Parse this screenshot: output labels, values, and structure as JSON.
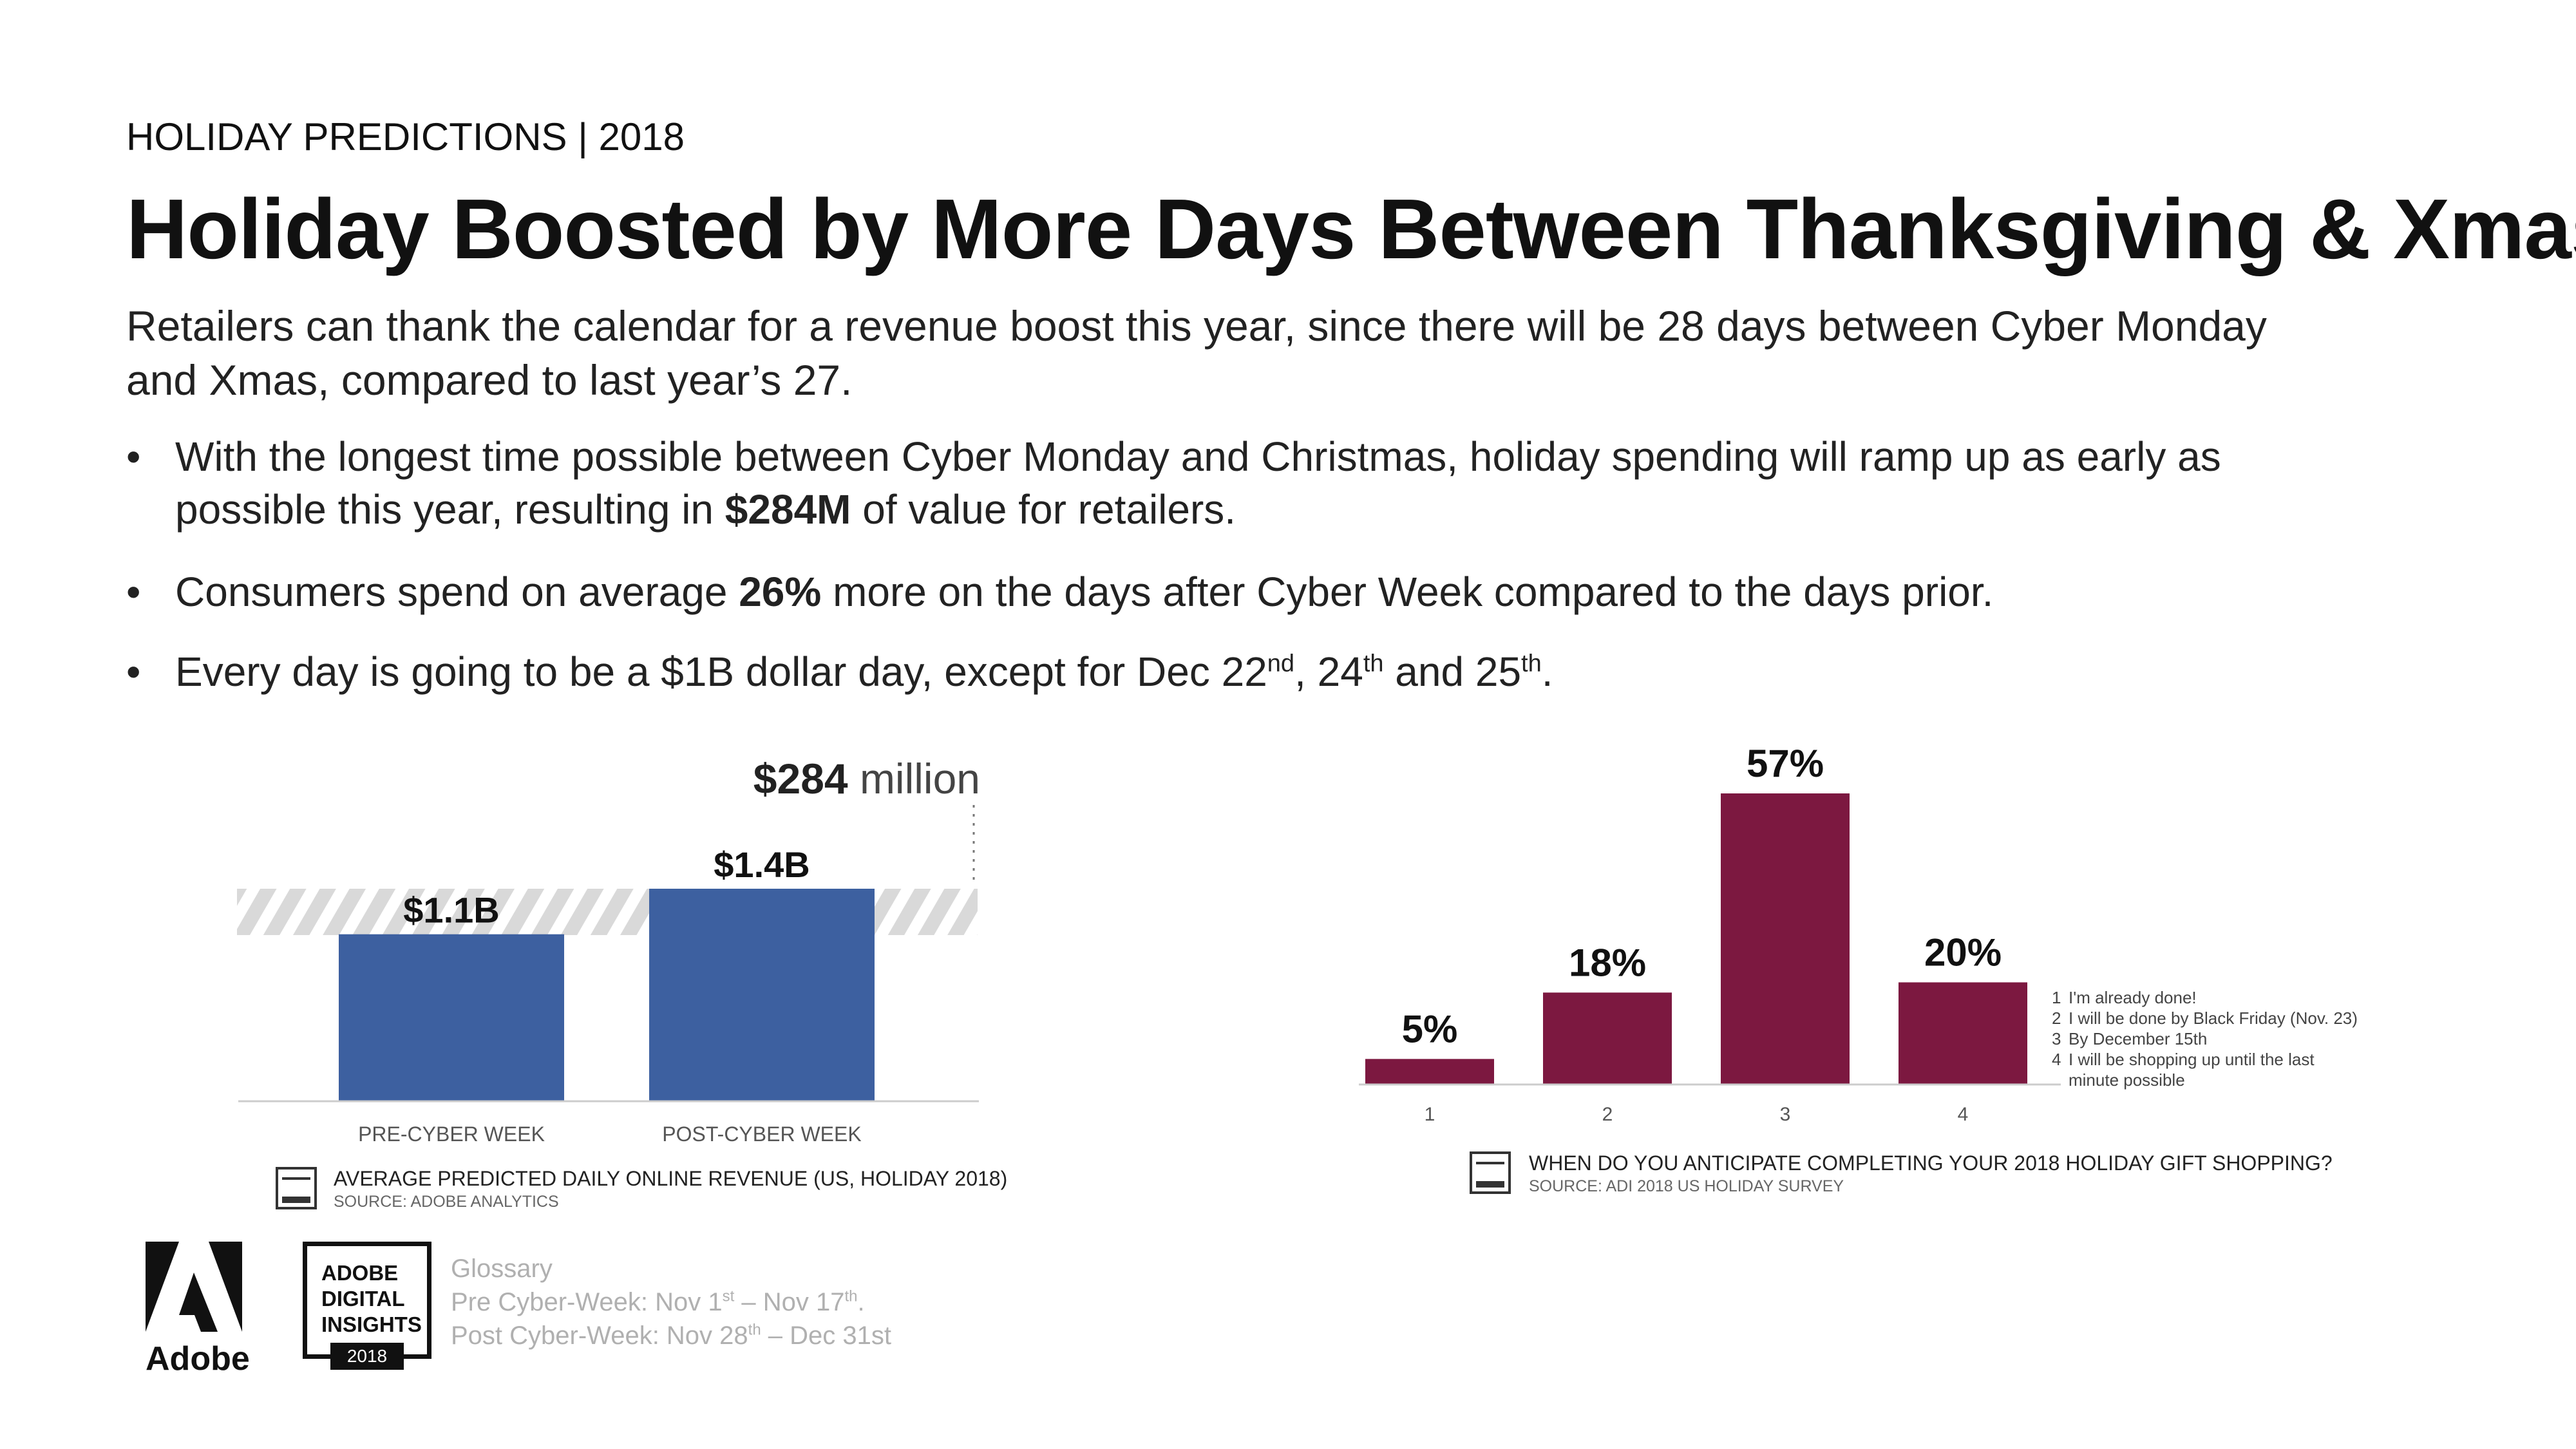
{
  "header": {
    "kicker": "HOLIDAY PREDICTIONS | 2018",
    "title": "Holiday Boosted by More Days Between Thanksgiving & Xmas",
    "subtitle": "Retailers can thank the calendar for a revenue boost this year, since there will be 28 days between Cyber Monday and Xmas, compared to last year’s 27."
  },
  "bullets": [
    {
      "pre": "With the longest time possible between Cyber Monday and Christmas, holiday spending will ramp up as early as possible this year, resulting in ",
      "bold": "$284M",
      "post": " of value for retailers."
    },
    {
      "pre": "Consumers spend on average ",
      "bold": "26%",
      "post": " more on the days after Cyber Week compared to the days prior."
    },
    {
      "pre": "Every day is going to be a $1B dollar day, except for Dec 22",
      "sup1": "nd",
      "mid1": ", 24",
      "sup2": "th",
      "mid2": " and 25",
      "sup3": "th",
      "post": "."
    }
  ],
  "bullet_symbol": "•",
  "chart_data": [
    {
      "type": "bar",
      "categories": [
        "PRE-CYBER WEEK",
        "POST-CYBER WEEK"
      ],
      "values": [
        1.1,
        1.4
      ],
      "value_labels": [
        "$1.1B",
        "$1.4B"
      ],
      "difference_label": {
        "bold": "$284",
        "text": " million"
      },
      "title": "AVERAGE PREDICTED DAILY ONLINE REVENUE (US, HOLIDAY 2018)",
      "source": "SOURCE: ADOBE ANALYTICS",
      "ylim": [
        0,
        1.4
      ],
      "color": "#3d60a0",
      "hatch_color": "#d9d9d9",
      "icon_text": "ADOBE DIGITAL INSIGHTS"
    },
    {
      "type": "bar",
      "categories": [
        "1",
        "2",
        "3",
        "4"
      ],
      "values": [
        5,
        18,
        57,
        20
      ],
      "value_labels": [
        "5%",
        "18%",
        "57%",
        "20%"
      ],
      "title": "WHEN DO YOU ANTICIPATE COMPLETING YOUR 2018 HOLIDAY GIFT SHOPPING?",
      "source": "SOURCE: ADI 2018 US HOLIDAY SURVEY",
      "ylim": [
        0,
        57
      ],
      "color": "#7c1840",
      "legend": [
        {
          "num": "1",
          "text": "I'm already done!"
        },
        {
          "num": "2",
          "text": "I will be done by Black Friday (Nov. 23)"
        },
        {
          "num": "3",
          "text": "By December 15th"
        },
        {
          "num": "4",
          "text": "I will be shopping up until the last"
        },
        {
          "num": "",
          "text": "minute possible"
        }
      ]
    }
  ],
  "footer": {
    "logo_label": "Adobe",
    "badge_lines": [
      "ADOBE",
      "DIGITAL",
      "INSIGHTS"
    ],
    "badge_year": "2018",
    "glossary_title": "Glossary",
    "pre_label": "Pre Cyber-Week: Nov 1",
    "pre_sup1": "st",
    "pre_mid": " – Nov 17",
    "pre_sup2": "th",
    "pre_end": ".",
    "post_label": "Post Cyber-Week: Nov 28",
    "post_sup": "th",
    "post_end": " – Dec 31st"
  }
}
